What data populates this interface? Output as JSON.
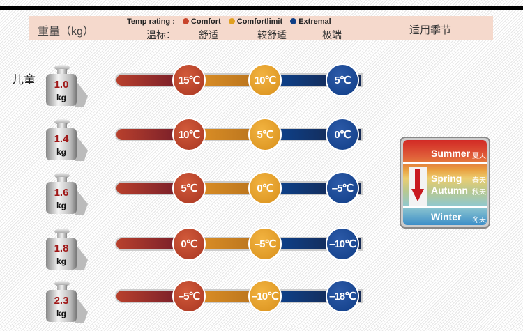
{
  "header": {
    "weight_label": "重量（kg）",
    "temp_rating": "Temp rating :",
    "temp_label_cn": "温标：",
    "legend": [
      {
        "en": "Comfort",
        "cn": "舒适",
        "color": "#c8452c"
      },
      {
        "en": "Comfortlimit",
        "cn": "较舒适",
        "color": "#e0a020"
      },
      {
        "en": "Extremal",
        "cn": "极端",
        "color": "#0e3f86"
      }
    ],
    "season_label": "适用季节"
  },
  "kid_label": "儿童",
  "rows": [
    {
      "weight": "1.0",
      "unit": "kg",
      "comfort": "15℃",
      "limit": "10℃",
      "extreme": "5℃"
    },
    {
      "weight": "1.4",
      "unit": "kg",
      "comfort": "10℃",
      "limit": "5℃",
      "extreme": "0℃"
    },
    {
      "weight": "1.6",
      "unit": "kg",
      "comfort": "5℃",
      "limit": "0℃",
      "extreme": "–5℃"
    },
    {
      "weight": "1.8",
      "unit": "kg",
      "comfort": "0℃",
      "limit": "–5℃",
      "extreme": "–10℃"
    },
    {
      "weight": "2.3",
      "unit": "kg",
      "comfort": "–5℃",
      "limit": "–10℃",
      "extreme": "–18℃"
    }
  ],
  "season": {
    "summer": "Summer",
    "summer_cn": "夏天",
    "spring": "Spring",
    "spring_cn": "春天",
    "autumn": "Autumn",
    "autumn_cn": "秋天",
    "winter": "Winter",
    "winter_cn": "冬天"
  }
}
